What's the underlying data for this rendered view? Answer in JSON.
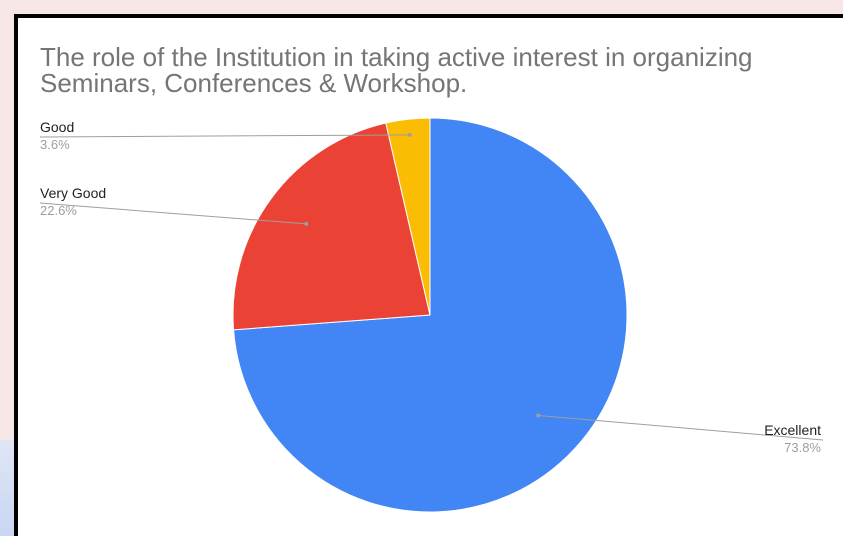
{
  "chart_data": {
    "type": "pie",
    "title": "The role of the Institution in taking active interest in organizing Seminars, Conferences & Workshop.",
    "slices": [
      {
        "label": "Excellent",
        "value": 73.8,
        "display": "73.8%",
        "color": "#4285f4"
      },
      {
        "label": "Very Good",
        "value": 22.6,
        "display": "22.6%",
        "color": "#ea4335"
      },
      {
        "label": "Good",
        "value": 3.6,
        "display": "3.6%",
        "color": "#fbbc04"
      }
    ],
    "start": "12 o'clock",
    "direction": "clockwise",
    "legend": "labels with leader lines"
  }
}
